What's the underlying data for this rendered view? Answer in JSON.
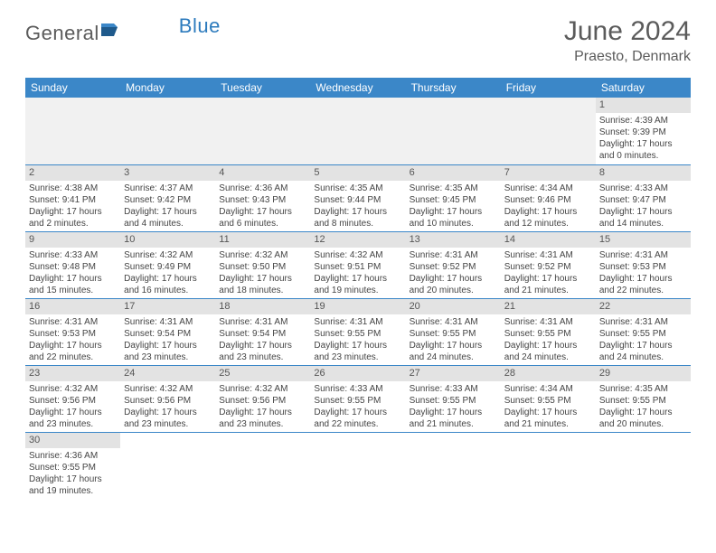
{
  "logo": {
    "text1": "General",
    "text2": "Blue"
  },
  "title": "June 2024",
  "location": "Praesto, Denmark",
  "colors": {
    "header_bg": "#3b87c8",
    "header_text": "#ffffff",
    "daynum_bg": "#e3e3e3",
    "empty_bg": "#f1f1f1",
    "cell_border": "#3b87c8",
    "text": "#444444",
    "title_text": "#5b5b5b",
    "logo_text": "#5b5b5b",
    "logo_blue": "#2d7bbd"
  },
  "daynames": [
    "Sunday",
    "Monday",
    "Tuesday",
    "Wednesday",
    "Thursday",
    "Friday",
    "Saturday"
  ],
  "weeks": [
    [
      null,
      null,
      null,
      null,
      null,
      null,
      {
        "n": "1",
        "sr": "4:39 AM",
        "ss": "9:39 PM",
        "dl": "17 hours and 0 minutes."
      }
    ],
    [
      {
        "n": "2",
        "sr": "4:38 AM",
        "ss": "9:41 PM",
        "dl": "17 hours and 2 minutes."
      },
      {
        "n": "3",
        "sr": "4:37 AM",
        "ss": "9:42 PM",
        "dl": "17 hours and 4 minutes."
      },
      {
        "n": "4",
        "sr": "4:36 AM",
        "ss": "9:43 PM",
        "dl": "17 hours and 6 minutes."
      },
      {
        "n": "5",
        "sr": "4:35 AM",
        "ss": "9:44 PM",
        "dl": "17 hours and 8 minutes."
      },
      {
        "n": "6",
        "sr": "4:35 AM",
        "ss": "9:45 PM",
        "dl": "17 hours and 10 minutes."
      },
      {
        "n": "7",
        "sr": "4:34 AM",
        "ss": "9:46 PM",
        "dl": "17 hours and 12 minutes."
      },
      {
        "n": "8",
        "sr": "4:33 AM",
        "ss": "9:47 PM",
        "dl": "17 hours and 14 minutes."
      }
    ],
    [
      {
        "n": "9",
        "sr": "4:33 AM",
        "ss": "9:48 PM",
        "dl": "17 hours and 15 minutes."
      },
      {
        "n": "10",
        "sr": "4:32 AM",
        "ss": "9:49 PM",
        "dl": "17 hours and 16 minutes."
      },
      {
        "n": "11",
        "sr": "4:32 AM",
        "ss": "9:50 PM",
        "dl": "17 hours and 18 minutes."
      },
      {
        "n": "12",
        "sr": "4:32 AM",
        "ss": "9:51 PM",
        "dl": "17 hours and 19 minutes."
      },
      {
        "n": "13",
        "sr": "4:31 AM",
        "ss": "9:52 PM",
        "dl": "17 hours and 20 minutes."
      },
      {
        "n": "14",
        "sr": "4:31 AM",
        "ss": "9:52 PM",
        "dl": "17 hours and 21 minutes."
      },
      {
        "n": "15",
        "sr": "4:31 AM",
        "ss": "9:53 PM",
        "dl": "17 hours and 22 minutes."
      }
    ],
    [
      {
        "n": "16",
        "sr": "4:31 AM",
        "ss": "9:53 PM",
        "dl": "17 hours and 22 minutes."
      },
      {
        "n": "17",
        "sr": "4:31 AM",
        "ss": "9:54 PM",
        "dl": "17 hours and 23 minutes."
      },
      {
        "n": "18",
        "sr": "4:31 AM",
        "ss": "9:54 PM",
        "dl": "17 hours and 23 minutes."
      },
      {
        "n": "19",
        "sr": "4:31 AM",
        "ss": "9:55 PM",
        "dl": "17 hours and 23 minutes."
      },
      {
        "n": "20",
        "sr": "4:31 AM",
        "ss": "9:55 PM",
        "dl": "17 hours and 24 minutes."
      },
      {
        "n": "21",
        "sr": "4:31 AM",
        "ss": "9:55 PM",
        "dl": "17 hours and 24 minutes."
      },
      {
        "n": "22",
        "sr": "4:31 AM",
        "ss": "9:55 PM",
        "dl": "17 hours and 24 minutes."
      }
    ],
    [
      {
        "n": "23",
        "sr": "4:32 AM",
        "ss": "9:56 PM",
        "dl": "17 hours and 23 minutes."
      },
      {
        "n": "24",
        "sr": "4:32 AM",
        "ss": "9:56 PM",
        "dl": "17 hours and 23 minutes."
      },
      {
        "n": "25",
        "sr": "4:32 AM",
        "ss": "9:56 PM",
        "dl": "17 hours and 23 minutes."
      },
      {
        "n": "26",
        "sr": "4:33 AM",
        "ss": "9:55 PM",
        "dl": "17 hours and 22 minutes."
      },
      {
        "n": "27",
        "sr": "4:33 AM",
        "ss": "9:55 PM",
        "dl": "17 hours and 21 minutes."
      },
      {
        "n": "28",
        "sr": "4:34 AM",
        "ss": "9:55 PM",
        "dl": "17 hours and 21 minutes."
      },
      {
        "n": "29",
        "sr": "4:35 AM",
        "ss": "9:55 PM",
        "dl": "17 hours and 20 minutes."
      }
    ],
    [
      {
        "n": "30",
        "sr": "4:36 AM",
        "ss": "9:55 PM",
        "dl": "17 hours and 19 minutes."
      },
      null,
      null,
      null,
      null,
      null,
      null
    ]
  ],
  "labels": {
    "sunrise": "Sunrise: ",
    "sunset": "Sunset: ",
    "daylight": "Daylight: "
  }
}
